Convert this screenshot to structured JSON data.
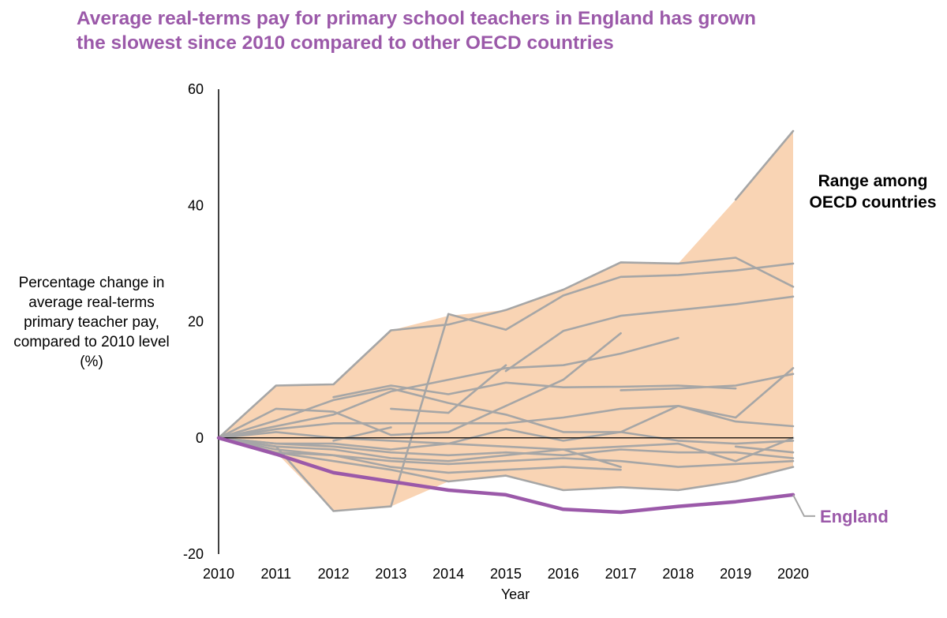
{
  "title_lines": [
    "Average real-terms pay for primary school teachers in England has grown",
    "the slowest since 2010 compared to other OECD countries"
  ],
  "ylabel_lines": [
    "Percentage change in",
    "average real-terms",
    "primary teacher pay,",
    "compared to 2010 level",
    "(%)"
  ],
  "colors": {
    "title": "#9b59a9",
    "range_fill": "#f9d4b4",
    "country_lines": "#a6a6a6",
    "england": "#9b59a9",
    "axis": "#000000"
  },
  "chart_data": {
    "type": "line",
    "title": "Average real-terms pay for primary school teachers in England has grown the slowest since 2010 compared to other OECD countries",
    "xlabel": "Year",
    "ylabel": "Percentage change in average real-terms primary teacher pay, compared to 2010 level (%)",
    "x": [
      2010,
      2011,
      2012,
      2013,
      2014,
      2015,
      2016,
      2017,
      2018,
      2019,
      2020
    ],
    "ylim": [
      -20,
      60
    ],
    "yticks": [
      -20,
      0,
      20,
      40,
      60
    ],
    "xticks": [
      "2010",
      "2011",
      "2012",
      "2013",
      "2014",
      "2015",
      "2016",
      "2017",
      "2018",
      "2019",
      "2020"
    ],
    "grid": false,
    "range_band": {
      "label": "Range among OECD countries",
      "label_lines": [
        "Range among",
        "OECD countries"
      ],
      "upper": [
        0,
        9,
        9.2,
        18.5,
        21,
        22,
        25.5,
        30.2,
        30,
        41,
        52.8
      ],
      "lower": [
        0,
        -2.5,
        -12.6,
        -11.8,
        -7.5,
        -6.5,
        -9,
        -8.5,
        -9,
        -7.5,
        -5
      ]
    },
    "series": [
      {
        "name": "England",
        "values": [
          0,
          -2.8,
          -6,
          -7.5,
          -9,
          -9.8,
          -12.3,
          -12.8,
          -11.8,
          -11,
          -9.8
        ]
      }
    ],
    "other_countries": [
      [
        0,
        9,
        9.2,
        18.5,
        19.5,
        22,
        25.5,
        30.2,
        30,
        31,
        26
      ],
      [
        0,
        null,
        null,
        null,
        21.3,
        18.6,
        24.5,
        27.7,
        28,
        28.8,
        30
      ],
      [
        0,
        null,
        null,
        null,
        null,
        null,
        null,
        null,
        null,
        41,
        52.8
      ],
      [
        0,
        null,
        -0.5,
        1.8,
        null,
        null,
        null,
        null,
        27,
        null,
        null
      ],
      [
        0,
        null,
        null,
        null,
        null,
        11.5,
        18.4,
        21,
        22,
        23,
        24.3
      ],
      [
        0,
        2,
        4,
        8,
        10,
        12,
        12.5,
        14.5,
        17.2,
        null,
        null
      ],
      [
        0,
        null,
        7,
        9,
        7.5,
        9.5,
        8.7,
        8.8,
        9,
        8.5,
        null
      ],
      [
        0,
        5,
        4.5,
        0.5,
        1,
        5.5,
        10,
        18,
        null,
        null,
        null
      ],
      [
        0,
        null,
        null,
        5,
        4.3,
        12.5,
        null,
        8.2,
        8.5,
        9,
        11
      ],
      [
        0,
        -1.5,
        -12.6,
        -11.8,
        21.3,
        null,
        null,
        null,
        null,
        null,
        null
      ],
      [
        0,
        1.5,
        2.5,
        2.5,
        2.5,
        2.5,
        3.5,
        5,
        5.5,
        3.5,
        12
      ],
      [
        0,
        3,
        6.5,
        8.5,
        6,
        4,
        1,
        1,
        5.5,
        2.8,
        2
      ],
      [
        0,
        -1,
        -1,
        -2,
        -1,
        1.5,
        -0.5,
        1,
        -0.5,
        -1,
        -0.5
      ],
      [
        0,
        1,
        0,
        -0.5,
        -1,
        -1.5,
        -2,
        -1.5,
        -1,
        -4,
        0
      ],
      [
        0,
        -1,
        -1.5,
        -2.5,
        -3,
        -2.5,
        -3,
        -2,
        -2.5,
        -2.5,
        -3.5
      ],
      [
        0,
        -1.5,
        -2,
        -3.5,
        -4,
        -3,
        -2,
        -5,
        null,
        -1.5,
        -2.5
      ],
      [
        0,
        -2,
        -3,
        -5,
        -6,
        -5.5,
        -5,
        -5.5,
        null,
        null,
        null
      ],
      [
        0,
        -2.5,
        -3,
        -4,
        -4.5,
        -4,
        -3.5,
        -4,
        -5,
        -4.5,
        -4
      ],
      [
        0,
        -2.5,
        -4,
        -5.5,
        -7.5,
        -6.5,
        -9,
        -8.5,
        -9,
        -7.5,
        -5
      ]
    ]
  }
}
